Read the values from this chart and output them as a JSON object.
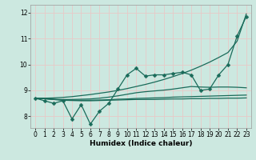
{
  "xlabel": "Humidex (Indice chaleur)",
  "bg_color": "#cce8e0",
  "line_color": "#1a6b5a",
  "grid_color": "#e8c8c8",
  "xlim": [
    -0.5,
    23.5
  ],
  "ylim": [
    7.55,
    12.3
  ],
  "yticks": [
    8,
    9,
    10,
    11,
    12
  ],
  "xticks": [
    0,
    1,
    2,
    3,
    4,
    5,
    6,
    7,
    8,
    9,
    10,
    11,
    12,
    13,
    14,
    15,
    16,
    17,
    18,
    19,
    20,
    21,
    22,
    23
  ],
  "lines": [
    {
      "y": [
        8.7,
        8.6,
        8.5,
        8.6,
        7.9,
        8.45,
        7.7,
        8.2,
        8.5,
        9.05,
        9.6,
        9.85,
        9.55,
        9.6,
        9.6,
        9.65,
        9.7,
        9.6,
        9.0,
        9.05,
        9.6,
        10.0,
        11.1,
        11.85
      ],
      "marker": true
    },
    {
      "y": [
        8.7,
        8.7,
        8.71,
        8.73,
        8.76,
        8.8,
        8.84,
        8.89,
        8.94,
        9.0,
        9.07,
        9.15,
        9.23,
        9.32,
        9.42,
        9.53,
        9.65,
        9.78,
        9.93,
        10.09,
        10.27,
        10.46,
        10.9,
        11.95
      ],
      "marker": false
    },
    {
      "y": [
        8.7,
        8.68,
        8.66,
        8.65,
        8.65,
        8.66,
        8.67,
        8.7,
        8.74,
        8.79,
        8.85,
        8.91,
        8.95,
        8.98,
        9.01,
        9.05,
        9.1,
        9.15,
        9.13,
        9.12,
        9.13,
        9.13,
        9.12,
        9.1
      ],
      "marker": false
    },
    {
      "y": [
        8.7,
        8.68,
        8.65,
        8.63,
        8.62,
        8.62,
        8.62,
        8.63,
        8.64,
        8.66,
        8.67,
        8.69,
        8.7,
        8.71,
        8.72,
        8.74,
        8.75,
        8.76,
        8.77,
        8.78,
        8.79,
        8.8,
        8.81,
        8.82
      ],
      "marker": false
    },
    {
      "y": [
        8.7,
        8.68,
        8.65,
        8.62,
        8.61,
        8.6,
        8.6,
        8.61,
        8.62,
        8.63,
        8.64,
        8.65,
        8.65,
        8.65,
        8.66,
        8.67,
        8.67,
        8.68,
        8.68,
        8.69,
        8.69,
        8.7,
        8.7,
        8.71
      ],
      "marker": false
    }
  ],
  "linewidth": 0.9,
  "markersize": 2.5
}
